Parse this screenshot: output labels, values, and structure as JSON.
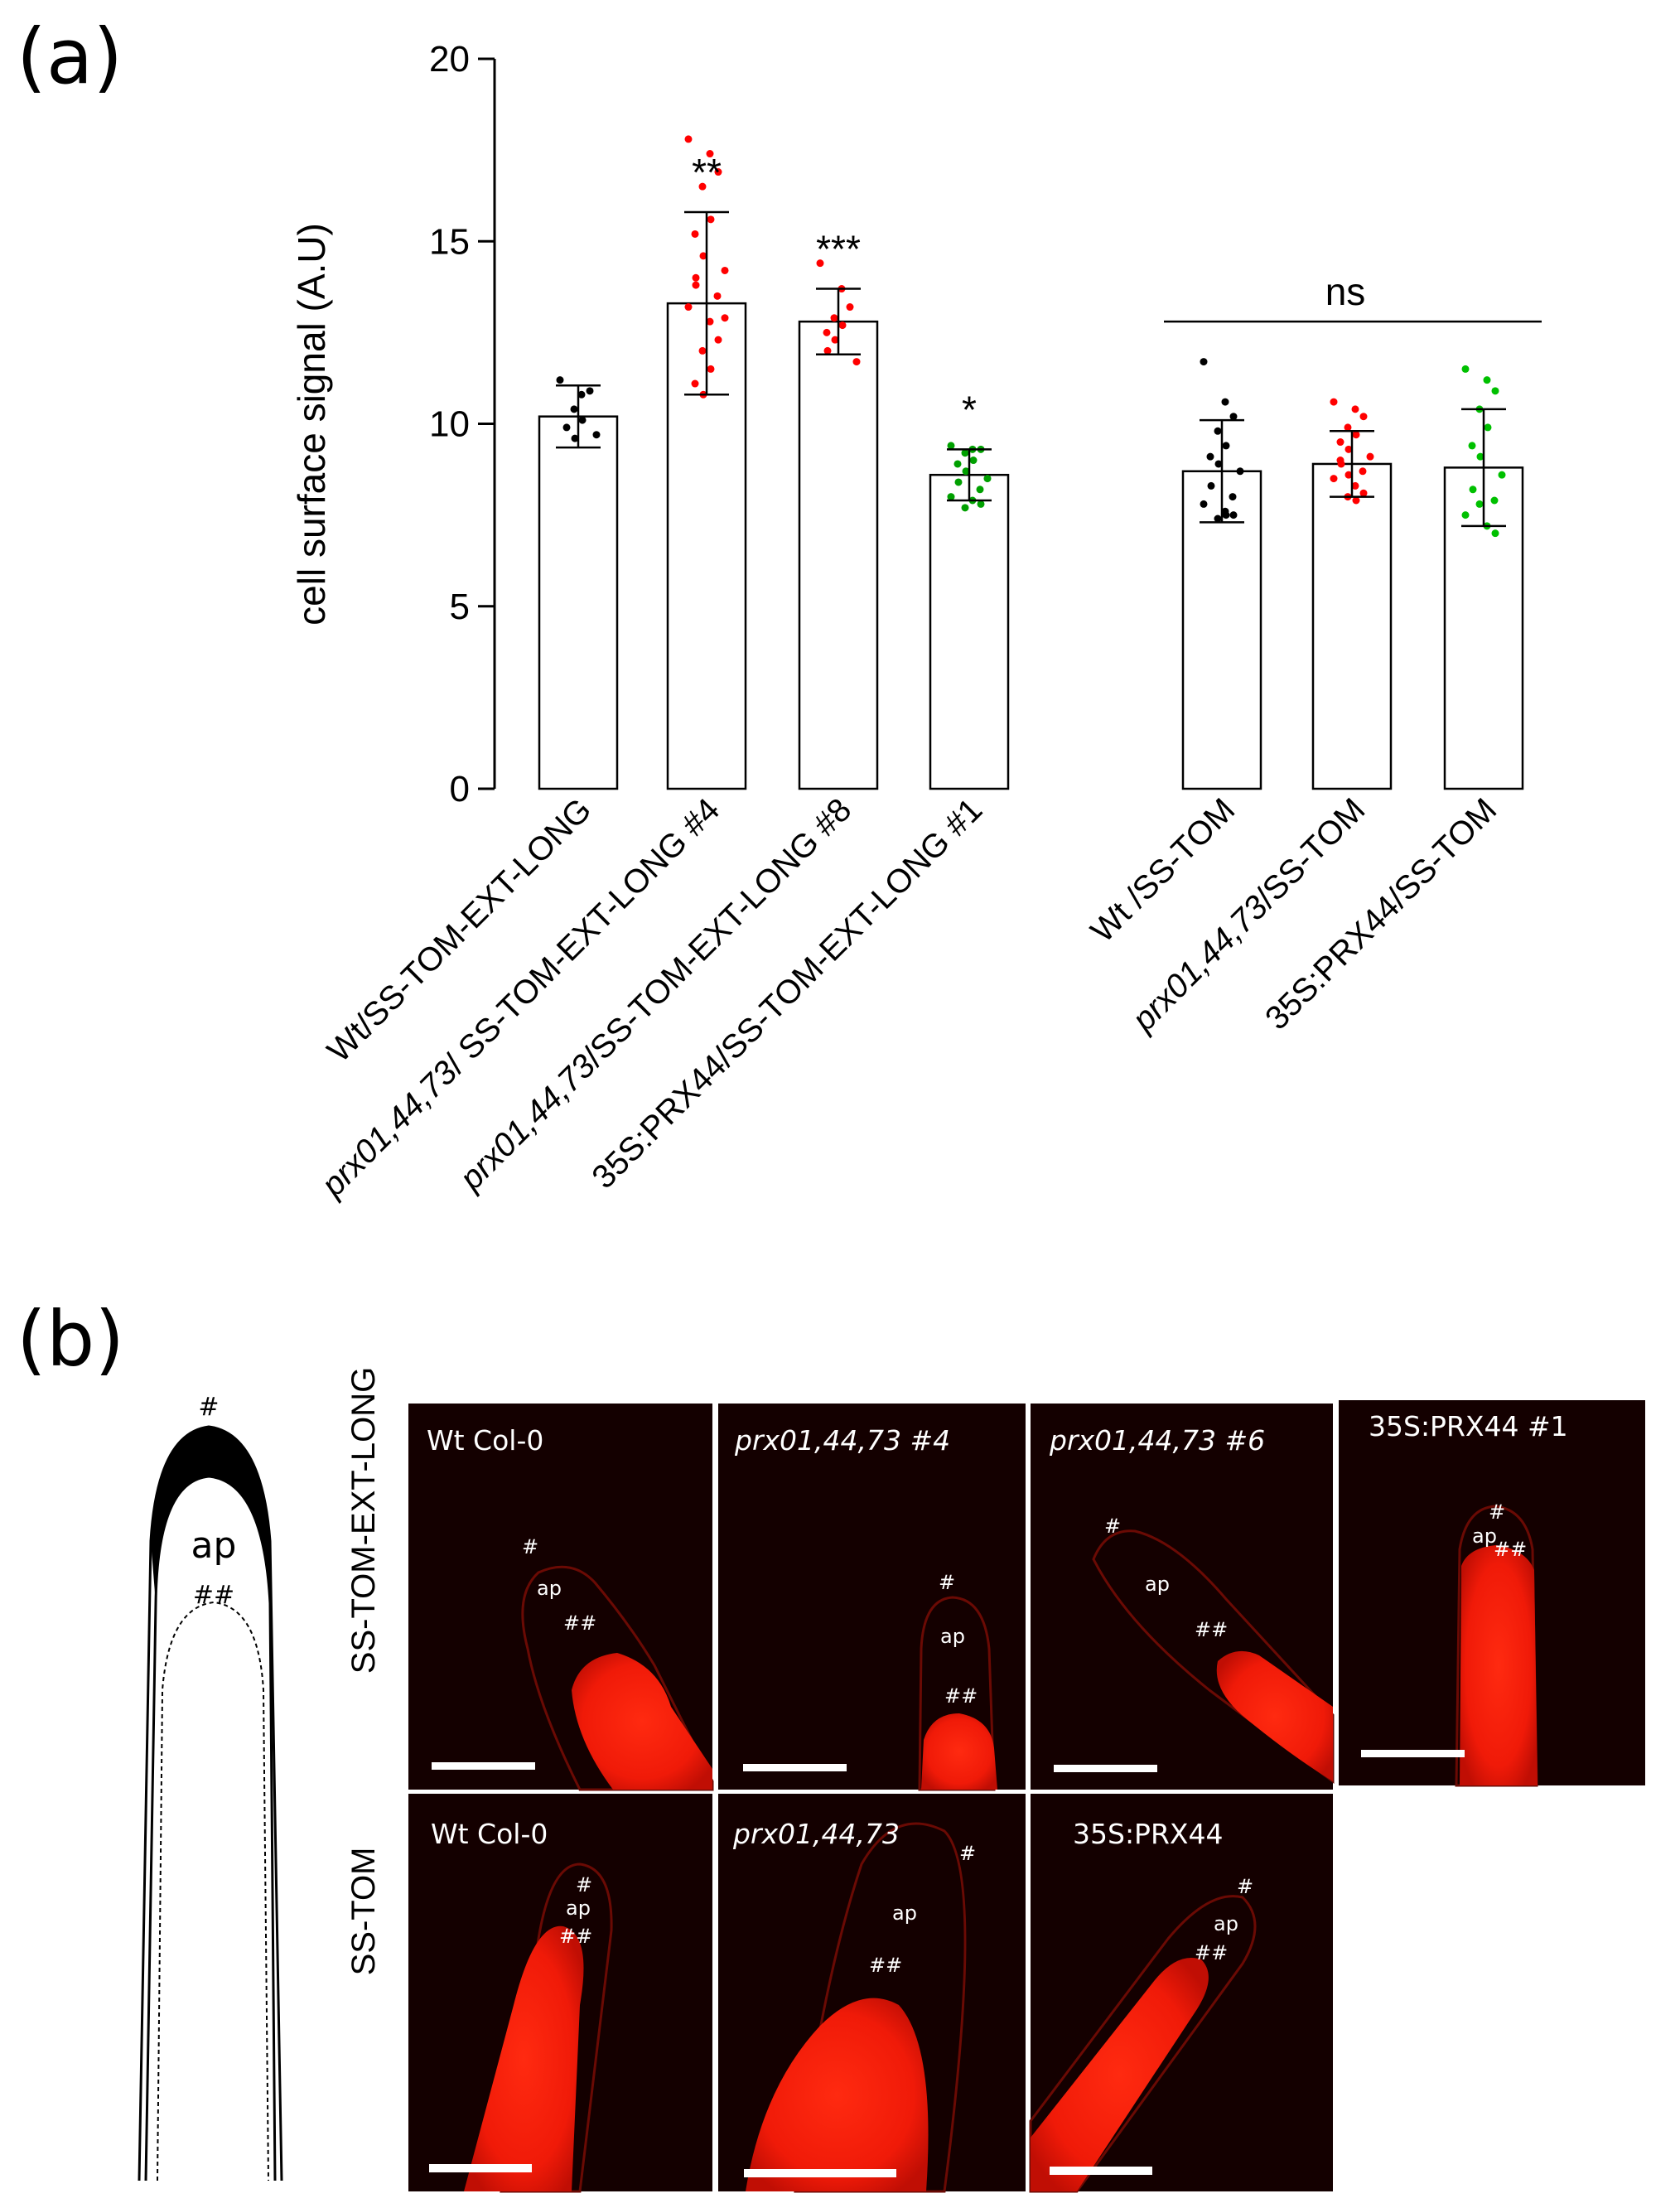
{
  "panel_a": {
    "letter": "(a)",
    "chart_data": {
      "type": "bar",
      "title": "",
      "xlabel": "",
      "ylabel": "cell surface signal (A.U)",
      "ylim": [
        0,
        20
      ],
      "yticks": [
        "0",
        "5",
        "10",
        "15",
        "20"
      ],
      "categories": [
        {
          "pre": "",
          "italic": "",
          "post": "Wt/SS-TOM-EXT-LONG",
          "mean": 10.2,
          "sd": 0.85,
          "sig": "",
          "color": "#000000",
          "points": [
            11.2,
            10.8,
            10.9,
            10.4,
            10.1,
            9.9,
            9.6,
            9.7
          ]
        },
        {
          "pre": "",
          "italic": "prx01,44,73",
          "post": "/ SS-TOM-EXT-LONG #4",
          "mean": 13.3,
          "sd": 2.5,
          "sig": "**",
          "color": "#ff0000",
          "points": [
            17.8,
            17.4,
            16.9,
            16.5,
            15.6,
            15.2,
            14.6,
            14.2,
            13.8,
            13.5,
            13.2,
            12.8,
            12.3,
            12.0,
            11.5,
            11.1,
            10.8,
            12.9,
            14.0
          ]
        },
        {
          "pre": "",
          "italic": "prx01,44,73",
          "post": "/SS-TOM-EXT-LONG #8",
          "mean": 12.8,
          "sd": 0.9,
          "sig": "***",
          "color": "#ff0000",
          "points": [
            14.4,
            13.7,
            13.2,
            12.9,
            12.7,
            12.5,
            12.3,
            11.7,
            12.0
          ]
        },
        {
          "pre": "35S:",
          "italic": "",
          "post": "PRX44/SS-TOM-EXT-LONG #1",
          "mean": 8.6,
          "sd": 0.7,
          "sig": "*",
          "color": "#00a000",
          "points": [
            9.4,
            9.3,
            9.3,
            9.2,
            9.0,
            8.9,
            8.7,
            8.5,
            8.4,
            8.2,
            8.0,
            7.9,
            7.8,
            7.7
          ]
        },
        {
          "pre": "",
          "italic": "",
          "post": "Wt /SS-TOM",
          "mean": 8.7,
          "sd": 1.4,
          "sig": "",
          "color": "#000000",
          "points": [
            11.7,
            10.6,
            10.2,
            9.8,
            9.4,
            9.1,
            8.9,
            8.7,
            8.3,
            8.0,
            7.8,
            7.6,
            7.5,
            7.4,
            7.5
          ]
        },
        {
          "pre": "",
          "italic": "prx01,44,73",
          "post": "/SS-TOM",
          "mean": 8.9,
          "sd": 0.9,
          "sig": "",
          "color": "#ff0000",
          "points": [
            10.6,
            10.4,
            10.2,
            9.9,
            9.7,
            9.5,
            9.3,
            9.1,
            8.9,
            8.7,
            8.5,
            8.3,
            8.1,
            8.0,
            7.9,
            9.0,
            8.6
          ]
        },
        {
          "pre": "35S:",
          "italic": "",
          "post": "PRX44/SS-TOM",
          "mean": 8.8,
          "sd": 1.6,
          "sig": "",
          "color": "#00c000",
          "points": [
            11.5,
            11.2,
            10.9,
            10.4,
            9.9,
            9.4,
            9.1,
            8.6,
            8.2,
            7.9,
            7.5,
            7.2,
            7.0,
            7.8
          ]
        }
      ],
      "bracket": {
        "label": "ns",
        "from": 4,
        "to": 6
      }
    }
  },
  "panel_b": {
    "letter": "(b)",
    "diagram": {
      "apex": "ap",
      "mark1": "#",
      "mark2": "##"
    },
    "rows": [
      {
        "label": "SS-TOM-EXT-LONG",
        "images": [
          {
            "title": "Wt Col-0",
            "italic": false,
            "marks": [
              "#",
              "ap",
              "##"
            ]
          },
          {
            "title": "prx01,44,73 #4",
            "italic": true,
            "marks": [
              "#",
              "ap",
              "##"
            ]
          },
          {
            "title": "prx01,44,73 #6",
            "italic": true,
            "marks": [
              "#",
              "ap",
              "##"
            ]
          },
          {
            "title": "35S:PRX44 #1",
            "italic": false,
            "marks": [
              "#",
              "ap",
              "##"
            ]
          }
        ]
      },
      {
        "label": "SS-TOM",
        "images": [
          {
            "title": "Wt Col-0",
            "italic": false,
            "marks": [
              "#",
              "ap",
              "##"
            ]
          },
          {
            "title": "prx01,44,73",
            "italic": true,
            "marks": [
              "#",
              "ap",
              "##"
            ]
          },
          {
            "title": "35S:PRX44",
            "italic": false,
            "marks": [
              "#",
              "ap",
              "##"
            ]
          }
        ]
      }
    ]
  }
}
